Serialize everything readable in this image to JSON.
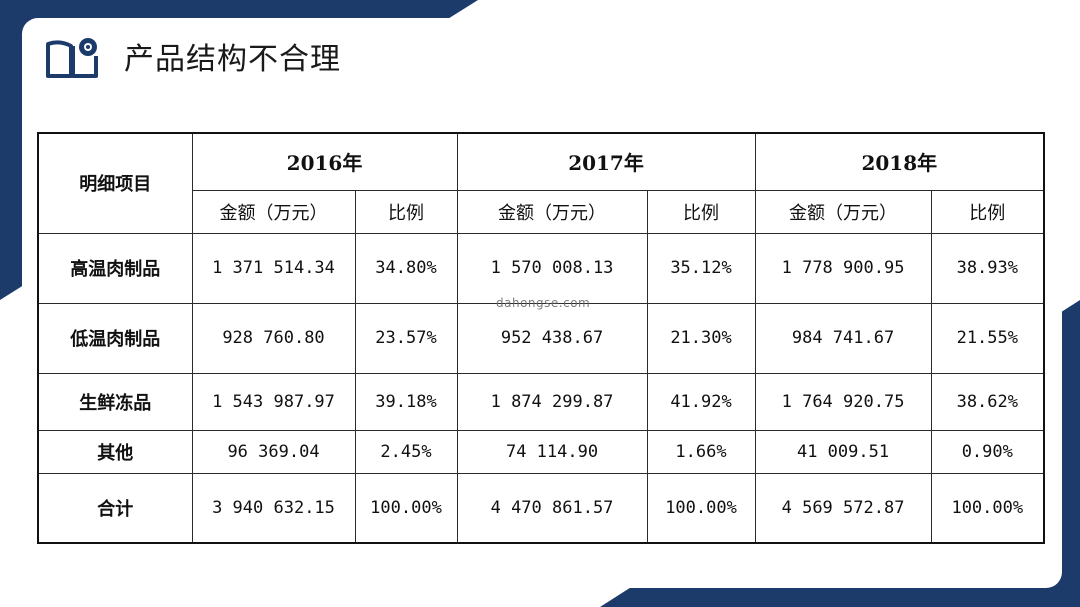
{
  "page": {
    "title": "产品结构不合理",
    "watermark": "dahongse.com"
  },
  "colors": {
    "navy": "#1c3b6b",
    "card": "#ffffff",
    "text": "#111111"
  },
  "icons": {
    "title_icon": "book-icon"
  },
  "table": {
    "row_header_label": "明细项目",
    "years": [
      "2016年",
      "2017年",
      "2018年"
    ],
    "sub_headers": [
      "金额（万元）",
      "比例",
      "金额（万元）",
      "比例",
      "金额（万元）",
      "比例"
    ],
    "rows": [
      {
        "label": "高温肉制品",
        "cells": [
          "1 371 514.34",
          "34.80%",
          "1 570 008.13",
          "35.12%",
          "1 778 900.95",
          "38.93%"
        ]
      },
      {
        "label": "低温肉制品",
        "cells": [
          "928 760.80",
          "23.57%",
          "952 438.67",
          "21.30%",
          "984 741.67",
          "21.55%"
        ]
      },
      {
        "label": "生鲜冻品",
        "cells": [
          "1 543 987.97",
          "39.18%",
          "1 874 299.87",
          "41.92%",
          "1 764 920.75",
          "38.62%"
        ]
      },
      {
        "label": "其他",
        "cells": [
          "96 369.04",
          "2.45%",
          "74 114.90",
          "1.66%",
          "41 009.51",
          "0.90%"
        ]
      },
      {
        "label": "合计",
        "cells": [
          "3 940 632.15",
          "100.00%",
          "4 470 861.57",
          "100.00%",
          "4 569 572.87",
          "100.00%"
        ]
      }
    ]
  }
}
